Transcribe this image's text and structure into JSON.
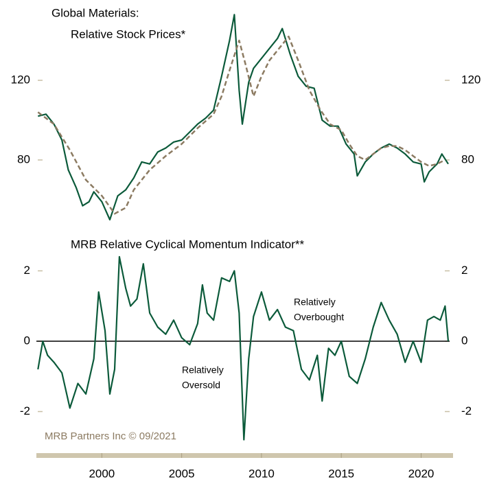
{
  "chart_data": [
    {
      "type": "line",
      "title": "Global Materials:",
      "subtitle": "Relative Stock Prices*",
      "xlim": [
        1995.9,
        2022.0
      ],
      "ylim": [
        46,
        155
      ],
      "yticks": [
        80,
        120
      ],
      "series": [
        {
          "color": "#0b5a3a",
          "style": "solid",
          "x": [
            1996.0,
            1996.5,
            1997.0,
            1997.5,
            1997.9,
            1998.4,
            1998.8,
            1999.2,
            1999.5,
            2000.0,
            2000.5,
            2001.0,
            2001.5,
            2002.0,
            2002.5,
            2003.0,
            2003.5,
            2004.0,
            2004.5,
            2005.0,
            2005.5,
            2006.0,
            2006.5,
            2007.0,
            2007.5,
            2008.0,
            2008.3,
            2008.6,
            2008.8,
            2009.2,
            2009.5,
            2010.0,
            2010.5,
            2011.0,
            2011.3,
            2011.8,
            2012.3,
            2012.8,
            2013.3,
            2013.8,
            2014.3,
            2014.8,
            2015.3,
            2015.8,
            2016.0,
            2016.5,
            2017.0,
            2017.5,
            2018.0,
            2018.5,
            2019.0,
            2019.5,
            2020.0,
            2020.2,
            2020.5,
            2021.0,
            2021.3,
            2021.7
          ],
          "values": [
            102,
            103,
            98,
            90,
            75,
            66,
            57,
            59,
            64,
            59,
            50,
            62,
            65,
            71,
            79,
            78,
            84,
            86,
            89,
            90,
            94,
            98,
            101,
            105,
            122,
            140,
            153,
            115,
            98,
            119,
            126,
            131,
            136,
            141,
            146,
            133,
            122,
            117,
            116,
            100,
            97,
            97,
            88,
            83,
            72,
            79,
            83,
            86,
            88,
            86,
            83,
            79,
            78,
            69,
            74,
            78,
            83,
            78
          ]
        },
        {
          "color": "#8c7b62",
          "style": "dashed",
          "x": [
            1996.0,
            1997.0,
            1998.0,
            1999.0,
            2000.0,
            2000.8,
            2001.5,
            2002.0,
            2003.0,
            2004.0,
            2005.0,
            2006.0,
            2007.0,
            2007.5,
            2008.0,
            2008.6,
            2009.0,
            2009.5,
            2010.0,
            2010.5,
            2011.0,
            2011.7,
            2012.3,
            2013.0,
            2013.7,
            2014.3,
            2015.0,
            2015.5,
            2016.0,
            2016.5,
            2017.0,
            2017.5,
            2018.0,
            2018.5,
            2019.0,
            2019.5,
            2020.0,
            2020.5,
            2021.0,
            2021.5
          ],
          "values": [
            104,
            98,
            85,
            70,
            62,
            53,
            56,
            65,
            75,
            82,
            88,
            96,
            103,
            112,
            125,
            140,
            128,
            112,
            122,
            130,
            135,
            142,
            130,
            115,
            105,
            98,
            95,
            88,
            82,
            80,
            83,
            86,
            87,
            87,
            85,
            82,
            79,
            77,
            78,
            80
          ]
        }
      ]
    },
    {
      "type": "line",
      "title": "MRB Relative Cyclical Momentum Indicator**",
      "xlim": [
        1995.9,
        2022.0
      ],
      "xticks": [
        2000,
        2005,
        2010,
        2015,
        2020
      ],
      "ylim": [
        -2.9,
        2.5
      ],
      "yticks": [
        -2,
        0,
        2
      ],
      "reference_line": 0,
      "annotations": [
        {
          "lines": [
            "Relatively",
            "Overbought"
          ]
        },
        {
          "lines": [
            "Relatively",
            "Oversold"
          ]
        }
      ],
      "series": [
        {
          "color": "#0b5a3a",
          "style": "solid",
          "x": [
            1996.0,
            1996.3,
            1996.6,
            1997.0,
            1997.5,
            1998.0,
            1998.5,
            1999.0,
            1999.5,
            1999.8,
            2000.2,
            2000.5,
            2000.8,
            2001.1,
            2001.5,
            2001.8,
            2002.2,
            2002.6,
            2003.0,
            2003.5,
            2004.0,
            2004.5,
            2005.0,
            2005.5,
            2006.0,
            2006.3,
            2006.6,
            2007.0,
            2007.5,
            2008.0,
            2008.3,
            2008.6,
            2008.9,
            2009.2,
            2009.5,
            2010.0,
            2010.5,
            2011.0,
            2011.5,
            2012.0,
            2012.5,
            2013.0,
            2013.5,
            2013.8,
            2014.2,
            2014.6,
            2015.0,
            2015.5,
            2016.0,
            2016.5,
            2017.0,
            2017.5,
            2018.0,
            2018.5,
            2019.0,
            2019.5,
            2020.0,
            2020.4,
            2020.8,
            2021.2,
            2021.5,
            2021.7
          ],
          "values": [
            -0.8,
            0,
            -0.4,
            -0.6,
            -0.9,
            -1.9,
            -1.2,
            -1.5,
            -0.5,
            1.4,
            0.3,
            -1.5,
            -0.8,
            2.4,
            1.5,
            1.0,
            1.2,
            2.2,
            0.8,
            0.4,
            0.2,
            0.6,
            0.1,
            -0.1,
            0.5,
            1.6,
            0.8,
            0.6,
            1.8,
            1.7,
            2.0,
            0.8,
            -2.8,
            -0.5,
            0.7,
            1.4,
            0.6,
            0.9,
            0.4,
            0.3,
            -0.8,
            -1.1,
            -0.4,
            -1.7,
            -0.2,
            -0.4,
            0,
            -1.0,
            -1.2,
            -0.5,
            0.4,
            1.1,
            0.6,
            0.2,
            -0.6,
            0,
            -0.6,
            0.6,
            0.7,
            0.6,
            1.0,
            0
          ]
        }
      ]
    }
  ],
  "source": "MRB Partners Inc © 09/2021"
}
